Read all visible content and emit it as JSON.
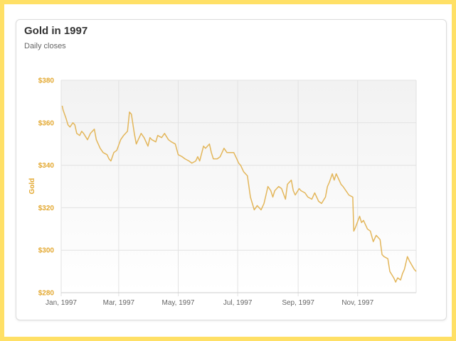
{
  "chart_data": {
    "type": "line",
    "title": "Gold in 1997",
    "subtitle": "Daily closes",
    "xlabel": "",
    "ylabel": "Gold",
    "x_ticks": [
      "Jan, 1997",
      "Mar, 1997",
      "May, 1997",
      "Jul, 1997",
      "Sep, 1997",
      "Nov, 1997"
    ],
    "y_ticks": [
      "$380",
      "$360",
      "$340",
      "$320",
      "$300",
      "$280"
    ],
    "ylim": [
      280,
      380
    ],
    "xlim": [
      "1997-01-01",
      "1997-12-31"
    ],
    "grid": true,
    "colors": {
      "line": "#e3b65a",
      "accent": "#e3a830",
      "frame": "#ffe066"
    },
    "series": [
      {
        "values": [
          [
            "1997-01-02",
            368
          ],
          [
            "1997-01-03",
            366
          ],
          [
            "1997-01-06",
            362
          ],
          [
            "1997-01-08",
            359
          ],
          [
            "1997-01-10",
            358
          ],
          [
            "1997-01-13",
            360
          ],
          [
            "1997-01-15",
            359
          ],
          [
            "1997-01-17",
            355
          ],
          [
            "1997-01-20",
            354
          ],
          [
            "1997-01-22",
            356
          ],
          [
            "1997-01-24",
            355
          ],
          [
            "1997-01-28",
            352
          ],
          [
            "1997-01-31",
            355
          ],
          [
            "1997-02-04",
            357
          ],
          [
            "1997-02-06",
            352
          ],
          [
            "1997-02-10",
            348
          ],
          [
            "1997-02-13",
            346
          ],
          [
            "1997-02-17",
            345
          ],
          [
            "1997-02-19",
            343
          ],
          [
            "1997-02-21",
            342
          ],
          [
            "1997-02-24",
            346
          ],
          [
            "1997-02-27",
            347
          ],
          [
            "1997-03-03",
            352
          ],
          [
            "1997-03-06",
            354
          ],
          [
            "1997-03-10",
            356
          ],
          [
            "1997-03-12",
            365
          ],
          [
            "1997-03-14",
            364
          ],
          [
            "1997-03-17",
            355
          ],
          [
            "1997-03-19",
            350
          ],
          [
            "1997-03-21",
            352
          ],
          [
            "1997-03-24",
            355
          ],
          [
            "1997-03-27",
            353
          ],
          [
            "1997-03-31",
            349
          ],
          [
            "1997-04-02",
            353
          ],
          [
            "1997-04-04",
            352
          ],
          [
            "1997-04-08",
            351
          ],
          [
            "1997-04-10",
            354
          ],
          [
            "1997-04-14",
            353
          ],
          [
            "1997-04-17",
            355
          ],
          [
            "1997-04-21",
            352
          ],
          [
            "1997-04-24",
            351
          ],
          [
            "1997-04-28",
            350
          ],
          [
            "1997-05-01",
            345
          ],
          [
            "1997-05-05",
            344
          ],
          [
            "1997-05-08",
            343
          ],
          [
            "1997-05-12",
            342
          ],
          [
            "1997-05-15",
            341
          ],
          [
            "1997-05-19",
            342
          ],
          [
            "1997-05-21",
            344
          ],
          [
            "1997-05-23",
            342
          ],
          [
            "1997-05-27",
            349
          ],
          [
            "1997-05-29",
            348
          ],
          [
            "1997-06-02",
            350
          ],
          [
            "1997-06-04",
            346
          ],
          [
            "1997-06-06",
            343
          ],
          [
            "1997-06-10",
            343
          ],
          [
            "1997-06-13",
            344
          ],
          [
            "1997-06-17",
            348
          ],
          [
            "1997-06-20",
            346
          ],
          [
            "1997-06-24",
            346
          ],
          [
            "1997-06-27",
            346
          ],
          [
            "1997-06-30",
            343
          ],
          [
            "1997-07-02",
            341
          ],
          [
            "1997-07-04",
            340
          ],
          [
            "1997-07-07",
            337
          ],
          [
            "1997-07-09",
            336
          ],
          [
            "1997-07-11",
            335
          ],
          [
            "1997-07-14",
            325
          ],
          [
            "1997-07-16",
            322
          ],
          [
            "1997-07-18",
            319
          ],
          [
            "1997-07-21",
            321
          ],
          [
            "1997-07-23",
            320
          ],
          [
            "1997-07-25",
            319
          ],
          [
            "1997-07-28",
            322
          ],
          [
            "1997-07-30",
            326
          ],
          [
            "1997-08-01",
            330
          ],
          [
            "1997-08-04",
            328
          ],
          [
            "1997-08-06",
            325
          ],
          [
            "1997-08-08",
            328
          ],
          [
            "1997-08-12",
            330
          ],
          [
            "1997-08-15",
            329
          ],
          [
            "1997-08-19",
            324
          ],
          [
            "1997-08-21",
            331
          ],
          [
            "1997-08-25",
            333
          ],
          [
            "1997-08-27",
            328
          ],
          [
            "1997-08-29",
            326
          ],
          [
            "1997-09-02",
            329
          ],
          [
            "1997-09-04",
            328
          ],
          [
            "1997-09-08",
            327
          ],
          [
            "1997-09-11",
            325
          ],
          [
            "1997-09-15",
            324
          ],
          [
            "1997-09-18",
            327
          ],
          [
            "1997-09-22",
            323
          ],
          [
            "1997-09-25",
            322
          ],
          [
            "1997-09-29",
            325
          ],
          [
            "1997-10-01",
            330
          ],
          [
            "1997-10-03",
            332
          ],
          [
            "1997-10-06",
            336
          ],
          [
            "1997-10-08",
            333
          ],
          [
            "1997-10-10",
            336
          ],
          [
            "1997-10-13",
            333
          ],
          [
            "1997-10-15",
            331
          ],
          [
            "1997-10-17",
            330
          ],
          [
            "1997-10-20",
            328
          ],
          [
            "1997-10-23",
            326
          ],
          [
            "1997-10-27",
            325
          ],
          [
            "1997-10-28",
            309
          ],
          [
            "1997-10-30",
            311
          ],
          [
            "1997-11-03",
            316
          ],
          [
            "1997-11-05",
            313
          ],
          [
            "1997-11-07",
            314
          ],
          [
            "1997-11-11",
            310
          ],
          [
            "1997-11-14",
            309
          ],
          [
            "1997-11-17",
            304
          ],
          [
            "1997-11-20",
            307
          ],
          [
            "1997-11-24",
            305
          ],
          [
            "1997-11-26",
            298
          ],
          [
            "1997-11-28",
            297
          ],
          [
            "1997-12-02",
            296
          ],
          [
            "1997-12-04",
            290
          ],
          [
            "1997-12-08",
            287
          ],
          [
            "1997-12-10",
            285
          ],
          [
            "1997-12-12",
            287
          ],
          [
            "1997-12-15",
            286
          ],
          [
            "1997-12-17",
            289
          ],
          [
            "1997-12-19",
            291
          ],
          [
            "1997-12-22",
            297
          ],
          [
            "1997-12-24",
            295
          ],
          [
            "1997-12-29",
            291
          ],
          [
            "1997-12-31",
            290
          ]
        ]
      }
    ]
  }
}
